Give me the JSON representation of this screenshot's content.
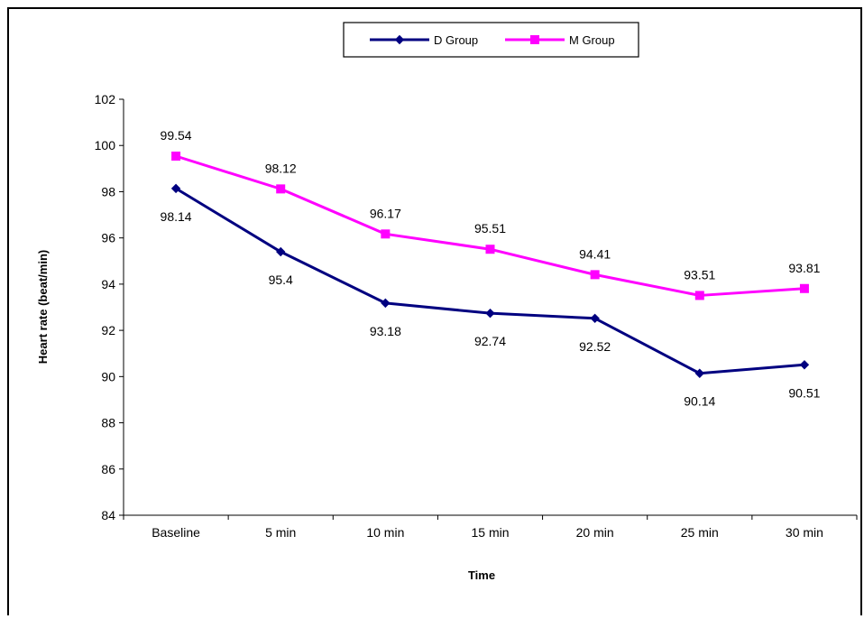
{
  "chart_data": {
    "type": "line",
    "categories": [
      "Baseline",
      "5 min",
      "10 min",
      "15 min",
      "20 min",
      "25 min",
      "30 min"
    ],
    "series": [
      {
        "name": "D Group",
        "values": [
          98.14,
          95.4,
          93.18,
          92.74,
          92.52,
          90.14,
          90.51
        ],
        "labels": [
          "98.14",
          "95.4",
          "93.18",
          "92.74",
          "92.52",
          "90.14",
          "90.51"
        ],
        "color": "#000080",
        "marker": "diamond",
        "label_position": "below"
      },
      {
        "name": "M Group",
        "values": [
          99.54,
          98.12,
          96.17,
          95.51,
          94.41,
          93.51,
          93.81
        ],
        "labels": [
          "99.54",
          "98.12",
          "96.17",
          "95.51",
          "94.41",
          "93.51",
          "93.81"
        ],
        "color": "#ff00ff",
        "marker": "square",
        "label_position": "above"
      }
    ],
    "xlabel": "Time",
    "ylabel": "Heart rate (beat/min)",
    "ylim": [
      84,
      102
    ],
    "yticks": [
      84,
      86,
      88,
      90,
      92,
      94,
      96,
      98,
      100,
      102
    ],
    "ytick_labels": [
      "84",
      "86",
      "88",
      "90",
      "92",
      "94",
      "96",
      "98",
      "100",
      "102"
    ],
    "grid": false,
    "legend_position": "top-center"
  }
}
